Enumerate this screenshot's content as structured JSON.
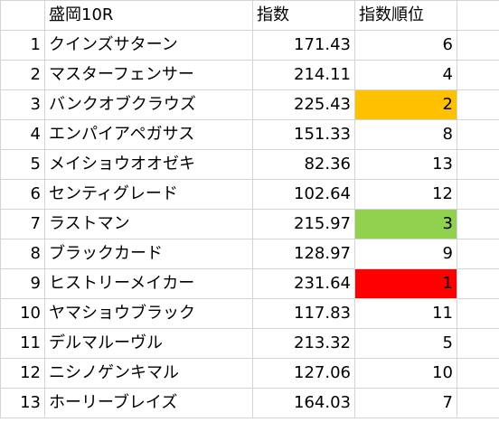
{
  "sheet": {
    "header": {
      "title": "盛岡10R",
      "index_label": "指数",
      "rank_label": "指数順位"
    },
    "rows": [
      {
        "no": "1",
        "name": "クインズサターン",
        "index": "171.43",
        "rank": "6",
        "highlight": ""
      },
      {
        "no": "2",
        "name": "マスターフェンサー",
        "index": "214.11",
        "rank": "4",
        "highlight": ""
      },
      {
        "no": "3",
        "name": "バンクオブクラウズ",
        "index": "225.43",
        "rank": "2",
        "highlight": "#ffc000"
      },
      {
        "no": "4",
        "name": "エンパイアペガサス",
        "index": "151.33",
        "rank": "8",
        "highlight": ""
      },
      {
        "no": "5",
        "name": "メイショウオオゼキ",
        "index": "82.36",
        "rank": "13",
        "highlight": ""
      },
      {
        "no": "6",
        "name": "センティグレード",
        "index": "102.64",
        "rank": "12",
        "highlight": ""
      },
      {
        "no": "7",
        "name": "ラストマン",
        "index": "215.97",
        "rank": "3",
        "highlight": "#92d050"
      },
      {
        "no": "8",
        "name": "ブラックカード",
        "index": "128.97",
        "rank": "9",
        "highlight": ""
      },
      {
        "no": "9",
        "name": "ヒストリーメイカー",
        "index": "231.64",
        "rank": "1",
        "highlight": "#ff0000"
      },
      {
        "no": "10",
        "name": "ヤマショウブラック",
        "index": "117.83",
        "rank": "11",
        "highlight": ""
      },
      {
        "no": "11",
        "name": "デルマルーヴル",
        "index": "213.32",
        "rank": "5",
        "highlight": ""
      },
      {
        "no": "12",
        "name": "ニシノゲンキマル",
        "index": "127.06",
        "rank": "10",
        "highlight": ""
      },
      {
        "no": "13",
        "name": "ホーリーブレイズ",
        "index": "164.03",
        "rank": "7",
        "highlight": ""
      }
    ]
  },
  "colors": {
    "gridline": "#d4d4d4",
    "rank_1": "#ff0000",
    "rank_2": "#ffc000",
    "rank_3": "#92d050"
  }
}
